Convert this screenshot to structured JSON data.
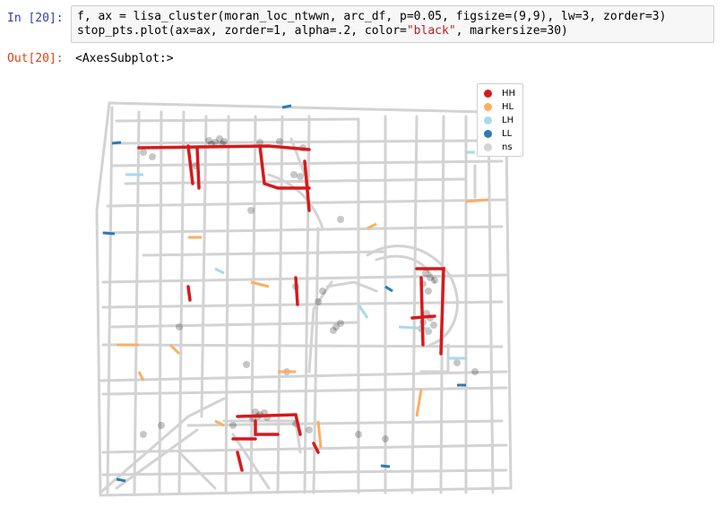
{
  "cell": {
    "input_prompt": "In [20]:",
    "output_prompt": "Out[20]:",
    "code_line1": "f, ax = lisa_cluster(moran_loc_ntwwn, arc_df, p=0.05, figsize=(9,9), lw=3, zorder=3)",
    "code_line2_pre": "stop_pts.plot(ax=ax, zorder=1, alpha=.2, color=",
    "code_line2_str": "\"black\"",
    "code_line2_post": ", markersize=30)",
    "output_repr": "<AxesSubplot:>"
  },
  "legend": [
    {
      "label": "HH",
      "color": "#d7191c"
    },
    {
      "label": "HL",
      "color": "#fdae61"
    },
    {
      "label": "LH",
      "color": "#abd9e9"
    },
    {
      "label": "LL",
      "color": "#2c7bb6"
    },
    {
      "label": "ns",
      "color": "#d3d3d3"
    }
  ]
}
